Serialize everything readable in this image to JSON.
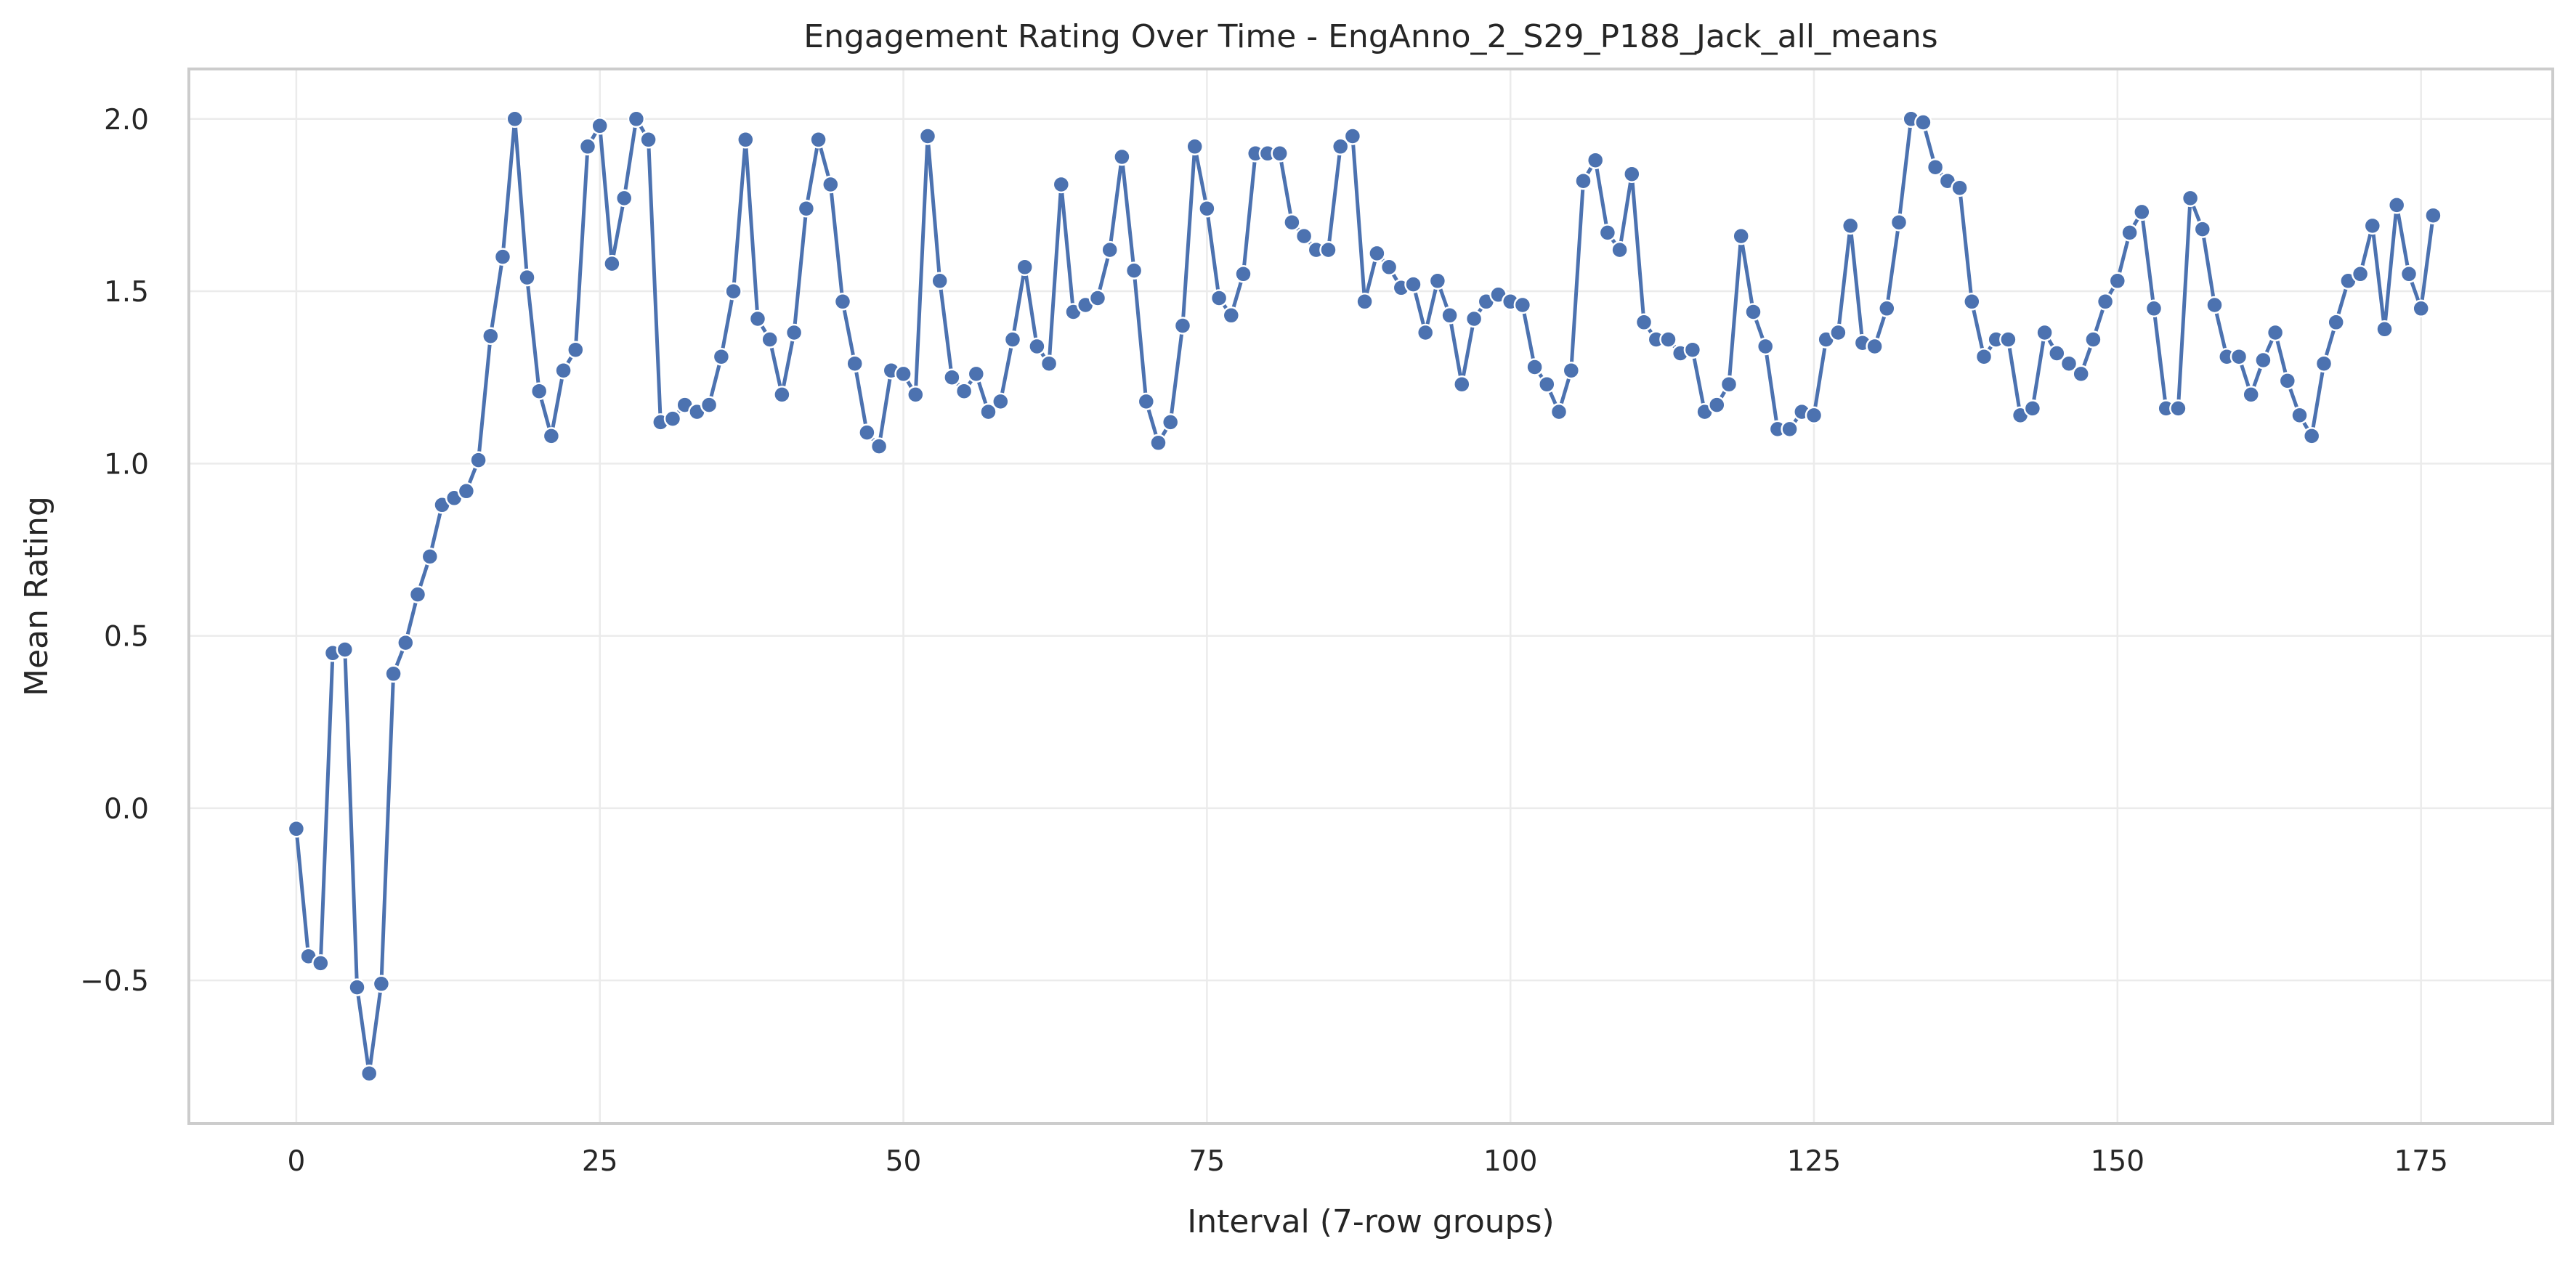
{
  "chart_data": {
    "type": "line",
    "title": "Engagement Rating Over Time - EngAnno_2_S29_P188_Jack_all_means",
    "xlabel": "Interval (7-row groups)",
    "ylabel": "Mean Rating",
    "xlim": [
      -8.85,
      185.85
    ],
    "ylim": [
      -0.915,
      2.145
    ],
    "xticks": [
      0,
      25,
      50,
      75,
      100,
      125,
      150,
      175
    ],
    "yticks": [
      -0.5,
      0.0,
      0.5,
      1.0,
      1.5,
      2.0
    ],
    "xtick_labels": [
      "0",
      "25",
      "50",
      "75",
      "100",
      "125",
      "150",
      "175"
    ],
    "ytick_labels": [
      "−0.5",
      "0.0",
      "0.5",
      "1.0",
      "1.5",
      "2.0"
    ],
    "grid": true,
    "legend": "none",
    "color": "#4c72b0",
    "marker": "circle",
    "series": [
      {
        "values": [
          -0.06,
          -0.43,
          -0.45,
          0.45,
          0.46,
          -0.52,
          -0.77,
          -0.51,
          0.39,
          0.48,
          0.62,
          0.73,
          0.88,
          0.9,
          0.92,
          1.01,
          1.37,
          1.6,
          2.0,
          1.54,
          1.21,
          1.08,
          1.27,
          1.33,
          1.92,
          1.98,
          1.58,
          1.77,
          2.0,
          1.94,
          1.12,
          1.13,
          1.17,
          1.15,
          1.17,
          1.31,
          1.5,
          1.94,
          1.42,
          1.36,
          1.2,
          1.38,
          1.74,
          1.94,
          1.81,
          1.47,
          1.29,
          1.09,
          1.05,
          1.27,
          1.26,
          1.2,
          1.95,
          1.53,
          1.25,
          1.21,
          1.26,
          1.15,
          1.18,
          1.36,
          1.57,
          1.34,
          1.29,
          1.81,
          1.44,
          1.46,
          1.48,
          1.62,
          1.89,
          1.56,
          1.18,
          1.06,
          1.12,
          1.4,
          1.92,
          1.74,
          1.48,
          1.43,
          1.55,
          1.9,
          1.9,
          1.9,
          1.7,
          1.66,
          1.62,
          1.62,
          1.92,
          1.95,
          1.47,
          1.61,
          1.57,
          1.51,
          1.52,
          1.38,
          1.53,
          1.43,
          1.23,
          1.42,
          1.47,
          1.49,
          1.47,
          1.46,
          1.28,
          1.23,
          1.15,
          1.27,
          1.82,
          1.88,
          1.67,
          1.62,
          1.84,
          1.41,
          1.36,
          1.36,
          1.32,
          1.33,
          1.15,
          1.17,
          1.23,
          1.66,
          1.44,
          1.34,
          1.1,
          1.1,
          1.15,
          1.14,
          1.36,
          1.38,
          1.69,
          1.35,
          1.34,
          1.45,
          1.7,
          2.0,
          1.99,
          1.86,
          1.82,
          1.8,
          1.47,
          1.31,
          1.36,
          1.36,
          1.14,
          1.16,
          1.38,
          1.32,
          1.29,
          1.26,
          1.36,
          1.47,
          1.53,
          1.67,
          1.73,
          1.45,
          1.16,
          1.16,
          1.77,
          1.68,
          1.46,
          1.31,
          1.31,
          1.2,
          1.3,
          1.38,
          1.24,
          1.14,
          1.08,
          1.29,
          1.41,
          1.53,
          1.55,
          1.69,
          1.39,
          1.75,
          1.55,
          1.45,
          1.72
        ]
      }
    ]
  }
}
